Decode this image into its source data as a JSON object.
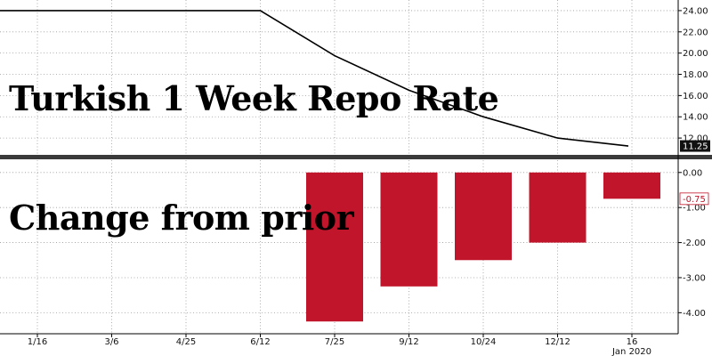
{
  "chart_data": [
    {
      "type": "line",
      "title": "Turkish 1 Week Repo Rate",
      "x": [
        "1/16",
        "3/6",
        "4/25",
        "6/12",
        "7/25",
        "9/12",
        "10/24",
        "12/12",
        "16"
      ],
      "series": [
        {
          "values": [
            24.0,
            24.0,
            24.0,
            24.0,
            19.75,
            16.5,
            14.0,
            12.0,
            11.25
          ],
          "color": "#000000"
        }
      ],
      "last_value_label": "11.25",
      "y_ticks": [
        "24.00",
        "22.00",
        "20.00",
        "18.00",
        "16.00",
        "14.00",
        "12.00"
      ],
      "ylim": [
        10.5,
        25.0
      ],
      "grid": true
    },
    {
      "type": "bar",
      "title": "Change from prior",
      "categories": [
        "1/16",
        "3/6",
        "4/25",
        "6/12",
        "7/25",
        "9/12",
        "10/24",
        "12/12",
        "16"
      ],
      "values": [
        0,
        0,
        0,
        0,
        -4.25,
        -3.25,
        -2.5,
        -2.0,
        -0.75
      ],
      "bar_color": "#c0152a",
      "last_value_label": "-0.75",
      "y_ticks": [
        "0.00",
        "-1.00",
        "-2.00",
        "-3.00",
        "-4.00"
      ],
      "ylim": [
        -4.6,
        0.35
      ],
      "grid": true
    }
  ],
  "x_axis": {
    "labels": [
      "1/16",
      "3/6",
      "4/25",
      "6/12",
      "7/25",
      "9/12",
      "10/24",
      "12/12",
      "16"
    ],
    "sublabel": "Jan 2020"
  }
}
